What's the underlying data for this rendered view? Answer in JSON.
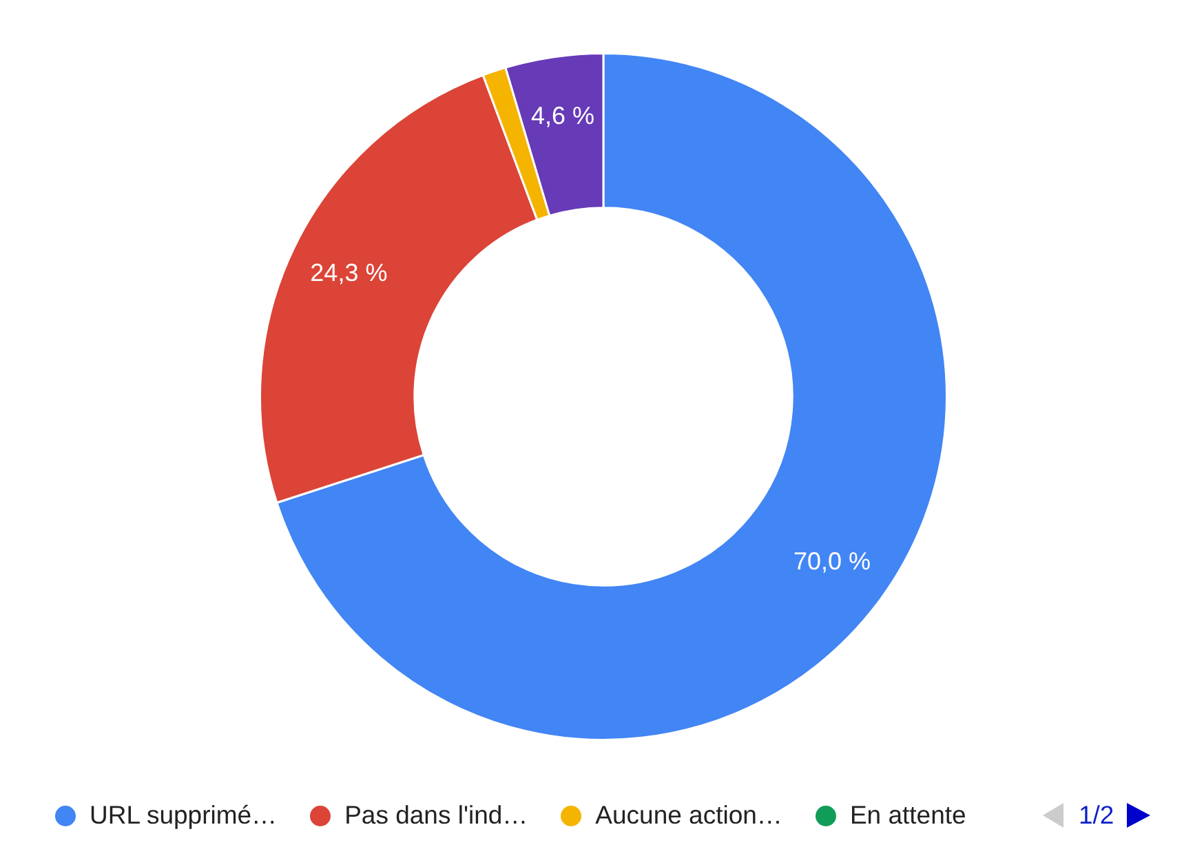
{
  "chart_data": {
    "type": "donut",
    "categories": [
      "URL supprimé…",
      "Pas dans l'ind…",
      "Aucune action…",
      "En attente",
      null
    ],
    "values": [
      70.0,
      24.3,
      1.1,
      0,
      4.6
    ],
    "colors": [
      "#4285f4",
      "#db4437",
      "#f4b400",
      "#0f9d58",
      "#673ab7"
    ],
    "value_labels": [
      "70,0 %",
      "24,3 %",
      null,
      null,
      "4,6 %"
    ],
    "legend": "bottom",
    "annotations": [
      "1/2"
    ]
  }
}
